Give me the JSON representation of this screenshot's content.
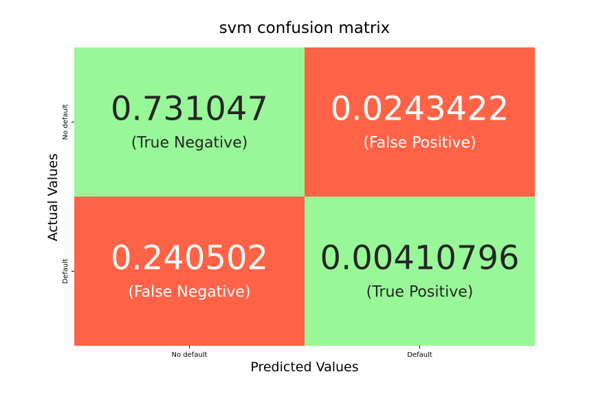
{
  "chart_data": {
    "type": "heatmap",
    "title": "svm confusion matrix",
    "xlabel": "Predicted Values",
    "ylabel": "Actual Values",
    "x_categories": [
      "No default",
      "Default"
    ],
    "y_categories": [
      "No default",
      "Default"
    ],
    "cells": [
      {
        "row": 0,
        "col": 0,
        "value": "0.731047",
        "label": "(True Negative)",
        "fill": "#98f898",
        "text_color": "#262626"
      },
      {
        "row": 0,
        "col": 1,
        "value": "0.0243422",
        "label": "(False Positive)",
        "fill": "#ff6347",
        "text_color": "#ffffff"
      },
      {
        "row": 1,
        "col": 0,
        "value": "0.240502",
        "label": "(False Negative)",
        "fill": "#ff6347",
        "text_color": "#ffffff"
      },
      {
        "row": 1,
        "col": 1,
        "value": "0.00410796",
        "label": "(True Positive)",
        "fill": "#98f898",
        "text_color": "#262626"
      }
    ],
    "colors": {
      "correct": "#98f898",
      "incorrect": "#ff6347"
    },
    "grid": false,
    "legend": "none"
  }
}
